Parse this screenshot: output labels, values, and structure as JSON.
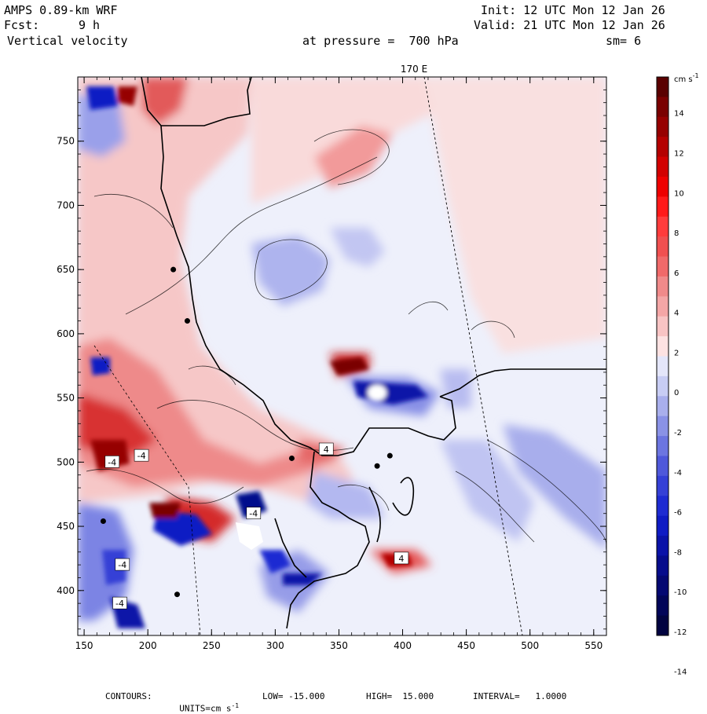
{
  "header": {
    "model": "AMPS 0.89-km WRF",
    "fcst_label": "Fcst:",
    "fcst_value": "9 h",
    "field": "Vertical velocity",
    "init": "Init: 12 UTC Mon 12 Jan 26",
    "valid": "Valid: 21 UTC Mon 12 Jan 26",
    "pressure": "at pressure =  700 hPa",
    "smoothing": "sm= 6"
  },
  "map": {
    "meridian_label": "170 E",
    "x_ticks": [
      "150",
      "200",
      "250",
      "300",
      "350",
      "400",
      "450",
      "500",
      "550"
    ],
    "y_ticks": [
      "750",
      "700",
      "650",
      "600",
      "550",
      "500",
      "450",
      "400"
    ],
    "x_range": [
      145,
      560
    ],
    "y_range": [
      365,
      800
    ],
    "box_labels": [
      {
        "text": "-4",
        "x": 172,
        "y": 500
      },
      {
        "text": "-4",
        "x": 195,
        "y": 505
      },
      {
        "text": "-4",
        "x": 283,
        "y": 460
      },
      {
        "text": "-4",
        "x": 180,
        "y": 420
      },
      {
        "text": "-4",
        "x": 178,
        "y": 390
      },
      {
        "text": "4",
        "x": 340,
        "y": 510
      },
      {
        "text": "4",
        "x": 399,
        "y": 425
      }
    ],
    "stations": [
      {
        "x": 220,
        "y": 650
      },
      {
        "x": 231,
        "y": 610
      },
      {
        "x": 313,
        "y": 503
      },
      {
        "x": 380,
        "y": 497
      },
      {
        "x": 390,
        "y": 505
      },
      {
        "x": 165,
        "y": 454
      },
      {
        "x": 223,
        "y": 397
      }
    ]
  },
  "colorbar": {
    "units": "cm s",
    "units_exp": "-1",
    "tick_labels": [
      "14",
      "12",
      "10",
      "8",
      "6",
      "4",
      "2",
      "0",
      "-2",
      "-4",
      "-6",
      "-8",
      "-10",
      "-12",
      "-14"
    ],
    "colors_top_to_bottom": [
      "#5a0000",
      "#7a0000",
      "#960000",
      "#b40000",
      "#d20000",
      "#ee0000",
      "#ff1a1a",
      "#ff3c3c",
      "#f05050",
      "#f06a6a",
      "#f08a8a",
      "#f4a6a6",
      "#f8c4c4",
      "#fde2e2",
      "#e4e6fa",
      "#c8cdf4",
      "#a9afec",
      "#8a92e6",
      "#6c75e0",
      "#4f58da",
      "#3540d6",
      "#1e2bd2",
      "#0f1bc4",
      "#0a12a8",
      "#060c8c",
      "#040872",
      "#020558",
      "#010340"
    ]
  },
  "footer": {
    "contours_label": "CONTOURS:",
    "units_label": "UNITS=cm s",
    "units_exp": "-1",
    "low": "LOW= -15.000",
    "high": "HIGH=  15.000",
    "interval": "INTERVAL=   1.0000"
  }
}
